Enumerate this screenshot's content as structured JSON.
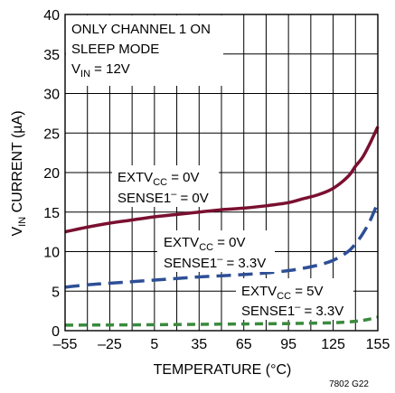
{
  "chart_data": {
    "type": "line",
    "title": "",
    "xlabel": "TEMPERATURE (°C)",
    "ylabel": {
      "main": "V",
      "sub": "IN",
      "rest": " CURRENT (µA)"
    },
    "xlim": [
      -55,
      155
    ],
    "ylim": [
      0,
      40
    ],
    "x_ticks": [
      -55,
      -25,
      5,
      35,
      65,
      95,
      125,
      155
    ],
    "y_ticks": [
      0,
      5,
      10,
      15,
      20,
      25,
      30,
      35,
      40
    ],
    "minor_x_grid_step": 15,
    "grid": true,
    "conditions": {
      "line1": "ONLY CHANNEL 1 ON",
      "line2": "SLEEP MODE",
      "line3": {
        "main": "V",
        "sub": "IN",
        "rest": " = 12V"
      }
    },
    "series": [
      {
        "color": "#7a1030",
        "style": "solid",
        "label_line1": {
          "main": "EXTV",
          "sub": "CC",
          "rest": " = 0V"
        },
        "label_line2": {
          "main": "SENSE1",
          "sup": "–",
          "rest": " = 0V"
        },
        "x": [
          -55,
          -40,
          -25,
          -10,
          5,
          20,
          35,
          50,
          65,
          80,
          95,
          105,
          115,
          125,
          135,
          140,
          145,
          150,
          155
        ],
        "y": [
          12.5,
          13.1,
          13.6,
          14.0,
          14.4,
          14.7,
          15.0,
          15.3,
          15.5,
          15.8,
          16.2,
          16.7,
          17.2,
          18.0,
          19.5,
          20.8,
          22.0,
          23.8,
          25.8
        ]
      },
      {
        "color": "#2e4f96",
        "style": "dashed",
        "label_line1": {
          "main": "EXTV",
          "sub": "CC",
          "rest": " = 0V"
        },
        "label_line2": {
          "main": "SENSE1",
          "sup": "–",
          "rest": " = 3.3V"
        },
        "x": [
          -55,
          -40,
          -25,
          -10,
          5,
          20,
          35,
          50,
          65,
          80,
          95,
          105,
          115,
          125,
          135,
          140,
          145,
          150,
          155
        ],
        "y": [
          5.5,
          5.8,
          6.0,
          6.2,
          6.4,
          6.6,
          6.8,
          6.95,
          7.1,
          7.3,
          7.6,
          7.9,
          8.3,
          8.9,
          10.0,
          11.0,
          12.3,
          14.0,
          16.2
        ]
      },
      {
        "color": "#3a8a3e",
        "style": "dashed",
        "label_line1": {
          "main": "EXTV",
          "sub": "CC",
          "rest": " = 5V"
        },
        "label_line2": {
          "main": "SENSE1",
          "sup": "–",
          "rest": " = 3.3V"
        },
        "x": [
          -55,
          -25,
          5,
          35,
          65,
          95,
          110,
          125,
          135,
          145,
          155
        ],
        "y": [
          0.7,
          0.72,
          0.75,
          0.8,
          0.85,
          0.9,
          0.95,
          1.0,
          1.1,
          1.3,
          1.7
        ]
      }
    ],
    "footnote": "7802 G22"
  }
}
